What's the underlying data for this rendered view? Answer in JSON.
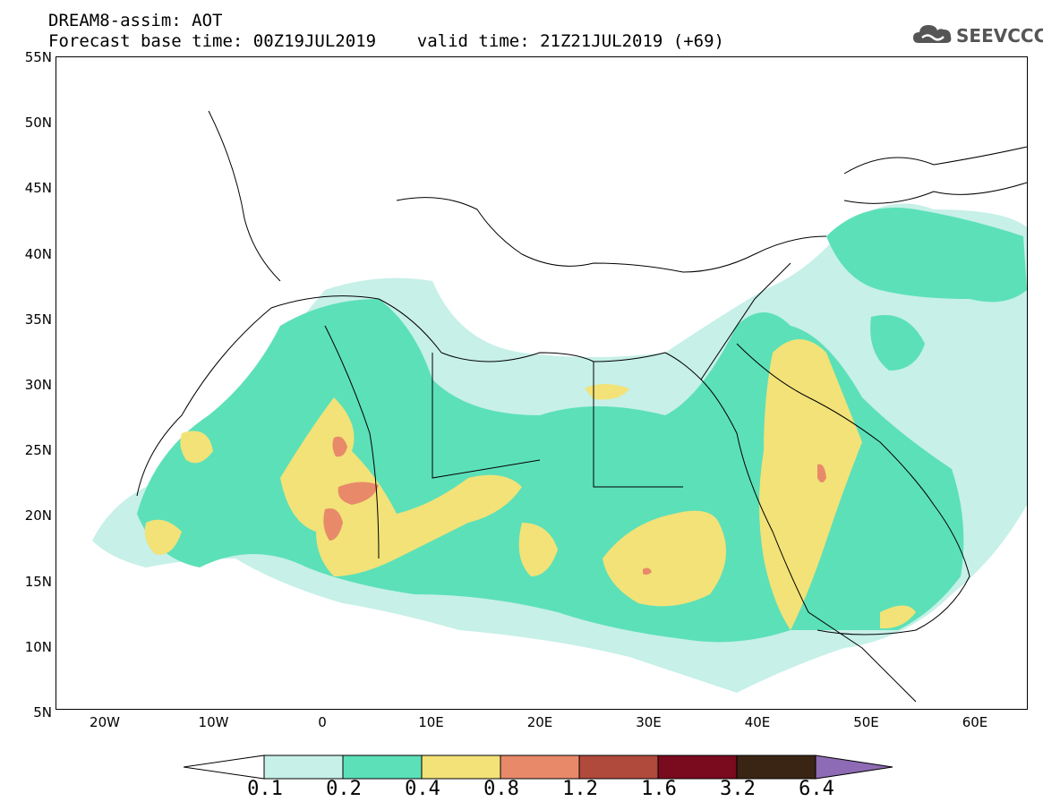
{
  "header": {
    "line1": "DREAM8-assim: AOT",
    "line2": "Forecast base time: 00Z19JUL2019    valid time: 21Z21JUL2019 (+69)"
  },
  "logo": {
    "text": "SEEVCCC",
    "icon": "cloud-icon"
  },
  "axes": {
    "y_ticks": [
      "55N",
      "50N",
      "45N",
      "40N",
      "35N",
      "30N",
      "25N",
      "20N",
      "15N",
      "10N",
      "5N"
    ],
    "x_ticks": [
      "20W",
      "10W",
      "0",
      "10E",
      "20E",
      "30E",
      "40E",
      "50E",
      "60E"
    ]
  },
  "colorbar": {
    "labels": [
      "0.1",
      "0.2",
      "0.4",
      "0.8",
      "1.2",
      "1.6",
      "3.2",
      "6.4"
    ],
    "colors": [
      "#c6f0e8",
      "#5ce0b8",
      "#f2e278",
      "#e8896a",
      "#b04a3c",
      "#7a0a1e",
      "#3a2414",
      "#8e6bb4"
    ]
  },
  "map": {
    "region": "North Africa / Middle East",
    "lon_range": [
      -25,
      65
    ],
    "lat_range": [
      5,
      55
    ],
    "quantity": "Aerosol Optical Thickness (dust)"
  }
}
